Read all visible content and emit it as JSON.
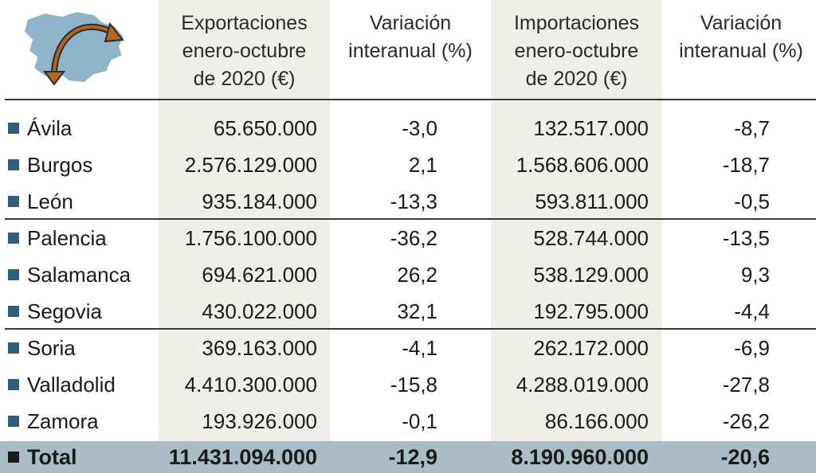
{
  "header": {
    "exports": "Exportaciones\nenero-octubre\nde 2020 (€)",
    "var_exports": "Variación\ninteranual (%)",
    "imports": "Importaciones\nenero-octubre\nde 2020 (€)",
    "var_imports": "Variación\ninteranual (%)"
  },
  "icons": {
    "map": "castilla-y-leon-map-icon"
  },
  "colors": {
    "shade": "#efefea",
    "accent": "#2f5f7a",
    "total_bg": "#aabcc4",
    "arrow": "#b5651d"
  },
  "chart_data": {
    "type": "table",
    "columns": [
      "",
      "Exportaciones enero-octubre de 2020 (€)",
      "Variación interanual (%)",
      "Importaciones enero-octubre de 2020 (€)",
      "Variación interanual (%)"
    ],
    "rows": [
      {
        "name": "Ávila",
        "exports": "65.650.000",
        "var_exports": "-3,0",
        "imports": "132.517.000",
        "var_imports": "-8,7"
      },
      {
        "name": "Burgos",
        "exports": "2.576.129.000",
        "var_exports": "2,1",
        "imports": "1.568.606.000",
        "var_imports": "-18,7"
      },
      {
        "name": "León",
        "exports": "935.184.000",
        "var_exports": "-13,3",
        "imports": "593.811.000",
        "var_imports": "-0,5"
      },
      {
        "name": "Palencia",
        "exports": "1.756.100.000",
        "var_exports": "-36,2",
        "imports": "528.744.000",
        "var_imports": "-13,5"
      },
      {
        "name": "Salamanca",
        "exports": "694.621.000",
        "var_exports": "26,2",
        "imports": "538.129.000",
        "var_imports": "9,3"
      },
      {
        "name": "Segovia",
        "exports": "430.022.000",
        "var_exports": "32,1",
        "imports": "192.795.000",
        "var_imports": "-4,4"
      },
      {
        "name": "Soria",
        "exports": "369.163.000",
        "var_exports": "-4,1",
        "imports": "262.172.000",
        "var_imports": "-6,9"
      },
      {
        "name": "Valladolid",
        "exports": "4.410.300.000",
        "var_exports": "-15,8",
        "imports": "4.288.019.000",
        "var_imports": "-27,8"
      },
      {
        "name": "Zamora",
        "exports": "193.926.000",
        "var_exports": "-0,1",
        "imports": "86.166.000",
        "var_imports": "-26,2"
      }
    ],
    "total": {
      "name": "Total",
      "exports": "11.431.094.000",
      "var_exports": "-12,9",
      "imports": "8.190.960.000",
      "var_imports": "-20,6"
    }
  }
}
